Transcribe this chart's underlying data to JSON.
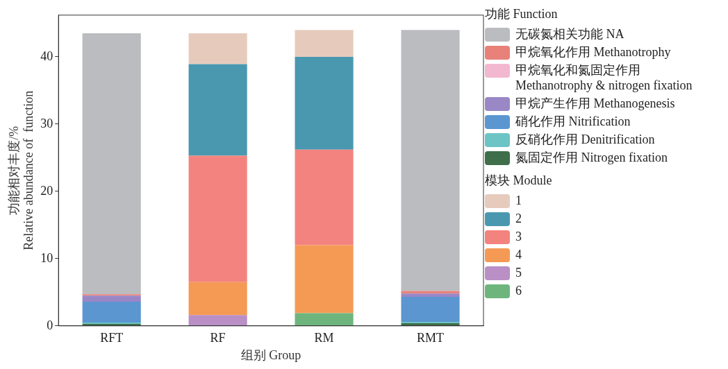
{
  "chart_data": {
    "type": "bar",
    "stacked": true,
    "xlabel": "组别 Group",
    "ylabel": "功能相对丰度/%\nRelative abundance of  function",
    "categories": [
      "RFT",
      "RF",
      "RM",
      "RMT"
    ],
    "ylim": [
      0,
      46.2
    ],
    "yticks": [
      0,
      10,
      20,
      30,
      40
    ],
    "grid": false,
    "legend": "right",
    "legend_title": "功能 Function",
    "annotations": [
      "模块 Module"
    ],
    "series": [
      {
        "name": "氮固定作用 Nitrogen fixation",
        "color": "#3f6e4a",
        "values": [
          0.3,
          null,
          null,
          0.4
        ]
      },
      {
        "name": "反硝化作用 Denitrification",
        "color": "#6cc4c4",
        "values": [
          0.2,
          null,
          null,
          0.2
        ]
      },
      {
        "name": "硝化作用 Nitrification",
        "color": "#5b96d0",
        "values": [
          3.1,
          null,
          null,
          3.7
        ]
      },
      {
        "name": "甲烷产生作用 Methanogenesis",
        "color": "#9a87c6",
        "values": [
          0.9,
          null,
          null,
          0.5
        ]
      },
      {
        "name": "甲烷氧化和氮固定作用\nMethanotrophy & nitrogen fixation",
        "color": "#f2b8d0",
        "values": [
          null,
          null,
          null,
          null
        ]
      },
      {
        "name": "甲烷氧化作用 Methanotrophy",
        "color": "#e8817a",
        "values": [
          0.2,
          null,
          null,
          0.4
        ]
      },
      {
        "name": "无碳氮相关功能 NA",
        "color": "#bbbcbf",
        "values": [
          38.8,
          null,
          null,
          38.8
        ]
      },
      {
        "name": "6",
        "color": "#6db57d",
        "values": [
          null,
          0,
          1.9,
          null
        ]
      },
      {
        "name": "5",
        "color": "#b98fc5",
        "values": [
          null,
          1.6,
          0,
          null
        ]
      },
      {
        "name": "4",
        "color": "#f59a55",
        "values": [
          null,
          4.9,
          10.1,
          null
        ]
      },
      {
        "name": "3",
        "color": "#f3837e",
        "values": [
          null,
          18.8,
          14.2,
          null
        ]
      },
      {
        "name": "2",
        "color": "#4a98b0",
        "values": [
          null,
          13.6,
          13.8,
          null
        ]
      },
      {
        "name": "1",
        "color": "#e6cbbd",
        "values": [
          null,
          4.6,
          4.0,
          null
        ]
      }
    ]
  }
}
